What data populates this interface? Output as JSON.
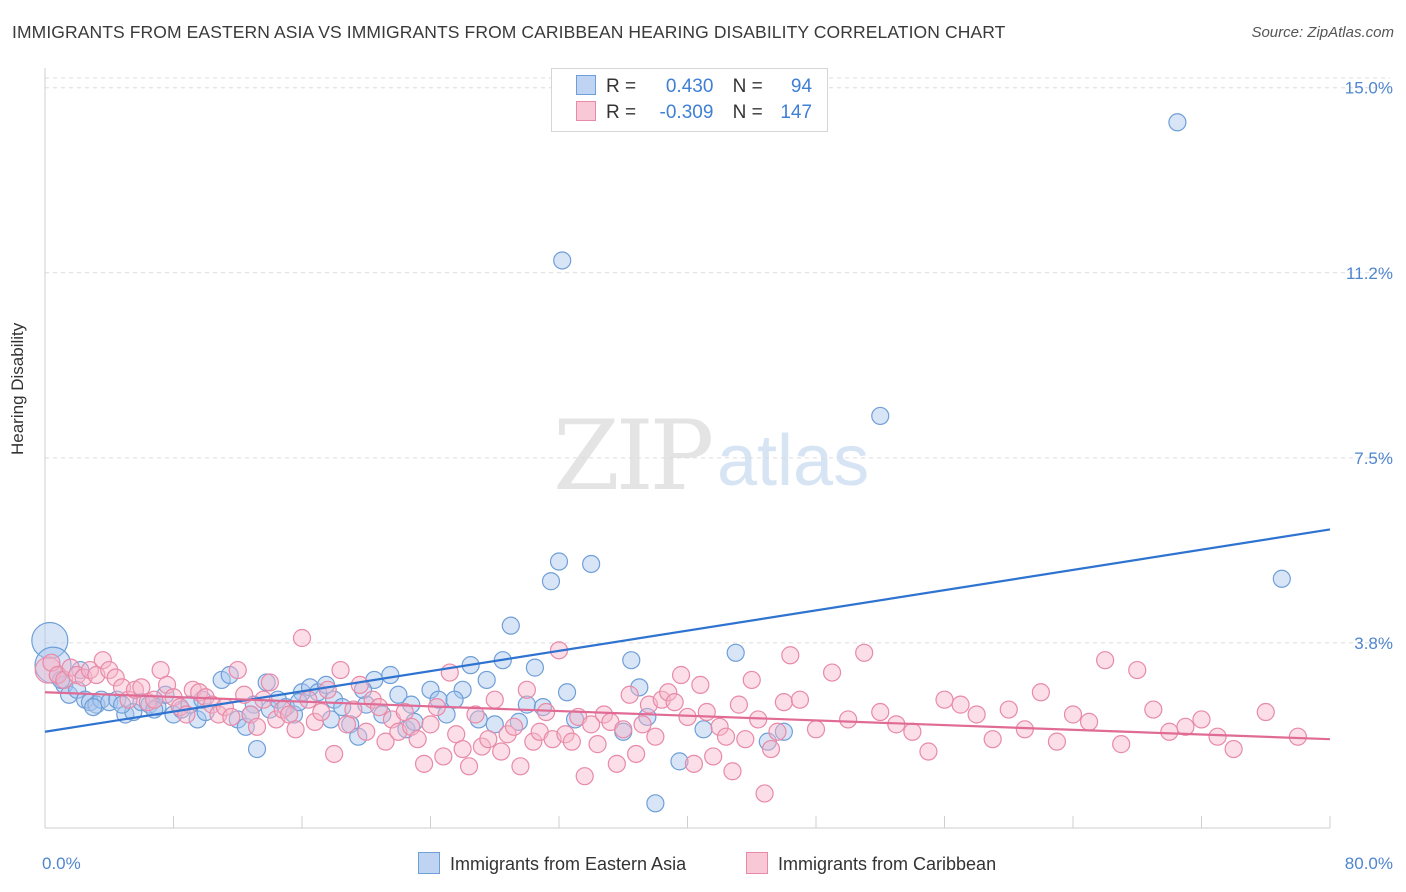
{
  "chart_data": {
    "type": "scatter",
    "title": "IMMIGRANTS FROM EASTERN ASIA VS IMMIGRANTS FROM CARIBBEAN HEARING DISABILITY CORRELATION CHART",
    "source": "Source: ZipAtlas.com",
    "ylabel": "Hearing Disability",
    "xlabel": "",
    "x_tick_labels": [
      "0.0%",
      "80.0%"
    ],
    "y_tick_labels": [
      "15.0%",
      "11.2%",
      "7.5%",
      "3.8%"
    ],
    "y_ticks": [
      15.0,
      11.25,
      7.5,
      3.75
    ],
    "xlim": [
      0,
      80
    ],
    "ylim": [
      0,
      15.4
    ],
    "grid": true,
    "watermark": {
      "zip": "ZIP",
      "atlas": "atlas"
    },
    "legend": {
      "placement": "top-center",
      "rows": [
        {
          "r_label": "R =",
          "r_value": "0.430",
          "n_label": "N =",
          "n_value": "94"
        },
        {
          "r_label": "R =",
          "r_value": "-0.309",
          "n_label": "N =",
          "n_value": "147"
        }
      ]
    },
    "series": [
      {
        "name": "Immigrants from Eastern Asia",
        "color": "#a9c6ee",
        "stroke": "#6f9fd8",
        "line_color": "#2f73d0",
        "trend": [
          [
            0,
            1.95
          ],
          [
            80,
            6.05
          ]
        ],
        "points": [
          [
            0.3,
            3.8,
            3
          ],
          [
            0.5,
            3.3,
            3
          ],
          [
            0.8,
            3.1,
            1
          ],
          [
            1.2,
            2.9,
            1
          ],
          [
            1.5,
            2.7,
            1
          ],
          [
            2,
            2.8,
            1
          ],
          [
            2.5,
            2.6,
            1
          ],
          [
            2.8,
            2.55,
            1
          ],
          [
            3.2,
            2.5,
            1
          ],
          [
            3.5,
            2.6,
            1
          ],
          [
            4,
            2.55,
            1
          ],
          [
            4.5,
            2.6,
            1
          ],
          [
            5,
            2.3,
            1
          ],
          [
            5.5,
            2.35,
            1
          ],
          [
            6,
            2.55,
            1
          ],
          [
            6.5,
            2.5,
            1
          ],
          [
            7,
            2.45,
            1
          ],
          [
            7.5,
            2.7,
            1
          ],
          [
            8,
            2.3,
            1
          ],
          [
            8.5,
            2.4,
            1
          ],
          [
            9,
            2.5,
            1
          ],
          [
            9.5,
            2.2,
            1
          ],
          [
            10,
            2.35,
            1
          ],
          [
            11,
            3.0,
            1
          ],
          [
            11.5,
            3.1,
            1
          ],
          [
            12,
            2.2,
            1
          ],
          [
            12.5,
            2.05,
            1
          ],
          [
            13,
            2.5,
            1
          ],
          [
            13.2,
            1.6,
            1
          ],
          [
            13.8,
            2.95,
            1
          ],
          [
            14,
            2.4,
            1
          ],
          [
            14.5,
            2.6,
            1
          ],
          [
            15,
            2.45,
            1
          ],
          [
            15.5,
            2.3,
            1
          ],
          [
            16,
            2.75,
            1
          ],
          [
            16.5,
            2.85,
            1
          ],
          [
            17,
            2.75,
            1
          ],
          [
            17.5,
            2.9,
            1
          ],
          [
            18,
            2.6,
            1
          ],
          [
            18.5,
            2.45,
            1
          ],
          [
            19,
            2.1,
            1
          ],
          [
            19.5,
            1.85,
            1
          ],
          [
            20,
            2.5,
            1
          ],
          [
            20.5,
            3.0,
            1
          ],
          [
            21,
            2.3,
            1
          ],
          [
            21.5,
            3.1,
            1
          ],
          [
            22,
            2.7,
            1
          ],
          [
            22.5,
            2.0,
            1
          ],
          [
            23,
            2.15,
            1
          ],
          [
            24,
            2.8,
            1
          ],
          [
            24.5,
            2.6,
            1
          ],
          [
            25,
            2.3,
            1
          ],
          [
            26,
            2.8,
            1
          ],
          [
            26.5,
            3.3,
            1
          ],
          [
            27,
            2.2,
            1
          ],
          [
            27.5,
            3.0,
            1
          ],
          [
            28,
            2.1,
            1
          ],
          [
            28.5,
            3.4,
            1
          ],
          [
            29,
            4.1,
            1
          ],
          [
            29.5,
            2.15,
            1
          ],
          [
            30,
            2.5,
            1
          ],
          [
            30.5,
            3.25,
            1
          ],
          [
            31,
            2.45,
            1
          ],
          [
            31.5,
            5.0,
            1
          ],
          [
            32,
            5.4,
            1
          ],
          [
            32.2,
            11.5,
            1
          ],
          [
            32.5,
            2.75,
            1
          ],
          [
            33,
            2.2,
            1
          ],
          [
            34,
            5.35,
            1
          ],
          [
            36,
            1.95,
            1
          ],
          [
            36.5,
            3.4,
            1
          ],
          [
            37,
            2.85,
            1
          ],
          [
            37.5,
            2.25,
            1
          ],
          [
            38,
            0.5,
            1
          ],
          [
            39.5,
            1.35,
            1
          ],
          [
            41,
            2.0,
            1
          ],
          [
            43,
            3.55,
            1
          ],
          [
            45,
            1.75,
            1
          ],
          [
            46,
            1.95,
            1
          ],
          [
            52,
            8.35,
            1
          ],
          [
            70.5,
            14.3,
            1
          ],
          [
            77,
            5.05,
            1
          ],
          [
            1,
            3.0,
            1
          ],
          [
            3,
            2.45,
            1
          ],
          [
            6.8,
            2.4,
            1
          ],
          [
            9.8,
            2.6,
            1
          ],
          [
            12.8,
            2.3,
            1
          ],
          [
            17.8,
            2.2,
            1
          ],
          [
            22.8,
            2.5,
            1
          ],
          [
            25.5,
            2.6,
            1
          ],
          [
            19.8,
            2.8,
            1
          ],
          [
            15.8,
            2.55,
            1
          ],
          [
            4.8,
            2.5,
            1
          ],
          [
            2.2,
            3.2,
            1
          ]
        ]
      },
      {
        "name": "Immigrants from Caribbean",
        "color": "#f6b6ca",
        "stroke": "#e88aa8",
        "line_color": "#e06b95",
        "trend": [
          [
            0,
            2.75
          ],
          [
            80,
            1.8
          ]
        ],
        "points": [
          [
            0.2,
            3.2,
            2
          ],
          [
            0.4,
            3.35,
            1
          ],
          [
            0.8,
            3.1,
            1
          ],
          [
            1.2,
            3.0,
            1
          ],
          [
            1.6,
            3.25,
            1
          ],
          [
            2,
            3.1,
            1
          ],
          [
            2.4,
            3.05,
            1
          ],
          [
            2.8,
            3.2,
            1
          ],
          [
            3.2,
            3.1,
            1
          ],
          [
            3.6,
            3.4,
            1
          ],
          [
            4,
            3.2,
            1
          ],
          [
            4.4,
            3.05,
            1
          ],
          [
            4.8,
            2.85,
            1
          ],
          [
            5.2,
            2.6,
            1
          ],
          [
            5.6,
            2.8,
            1
          ],
          [
            6,
            2.85,
            1
          ],
          [
            6.4,
            2.55,
            1
          ],
          [
            6.8,
            2.6,
            1
          ],
          [
            7.2,
            3.2,
            1
          ],
          [
            7.6,
            2.9,
            1
          ],
          [
            8,
            2.65,
            1
          ],
          [
            8.4,
            2.45,
            1
          ],
          [
            8.8,
            2.3,
            1
          ],
          [
            9.2,
            2.8,
            1
          ],
          [
            9.6,
            2.75,
            1
          ],
          [
            10,
            2.65,
            1
          ],
          [
            10.4,
            2.5,
            1
          ],
          [
            10.8,
            2.3,
            1
          ],
          [
            11.2,
            2.45,
            1
          ],
          [
            11.6,
            2.25,
            1
          ],
          [
            12,
            3.2,
            1
          ],
          [
            12.4,
            2.7,
            1
          ],
          [
            12.8,
            2.3,
            1
          ],
          [
            13.2,
            2.05,
            1
          ],
          [
            13.6,
            2.6,
            1
          ],
          [
            14,
            2.95,
            1
          ],
          [
            14.4,
            2.2,
            1
          ],
          [
            14.8,
            2.4,
            1
          ],
          [
            15.2,
            2.3,
            1
          ],
          [
            15.6,
            2.0,
            1
          ],
          [
            16,
            3.85,
            1
          ],
          [
            16.4,
            2.6,
            1
          ],
          [
            16.8,
            2.15,
            1
          ],
          [
            17.2,
            2.35,
            1
          ],
          [
            17.6,
            2.8,
            1
          ],
          [
            18,
            1.5,
            1
          ],
          [
            18.4,
            3.2,
            1
          ],
          [
            18.8,
            2.1,
            1
          ],
          [
            19.2,
            2.4,
            1
          ],
          [
            19.6,
            2.9,
            1
          ],
          [
            20,
            1.95,
            1
          ],
          [
            20.4,
            2.6,
            1
          ],
          [
            20.8,
            2.45,
            1
          ],
          [
            21.2,
            1.75,
            1
          ],
          [
            21.6,
            2.2,
            1
          ],
          [
            22,
            1.95,
            1
          ],
          [
            22.4,
            2.35,
            1
          ],
          [
            22.8,
            2.05,
            1
          ],
          [
            23.2,
            1.8,
            1
          ],
          [
            23.6,
            1.3,
            1
          ],
          [
            24,
            2.1,
            1
          ],
          [
            24.4,
            2.45,
            1
          ],
          [
            24.8,
            1.45,
            1
          ],
          [
            25.2,
            3.15,
            1
          ],
          [
            25.6,
            1.9,
            1
          ],
          [
            26,
            1.6,
            1
          ],
          [
            26.4,
            1.25,
            1
          ],
          [
            26.8,
            2.3,
            1
          ],
          [
            27.2,
            1.65,
            1
          ],
          [
            27.6,
            1.8,
            1
          ],
          [
            28,
            2.6,
            1
          ],
          [
            28.4,
            1.55,
            1
          ],
          [
            28.8,
            1.9,
            1
          ],
          [
            29.2,
            2.05,
            1
          ],
          [
            29.6,
            1.25,
            1
          ],
          [
            30,
            2.8,
            1
          ],
          [
            30.4,
            1.75,
            1
          ],
          [
            30.8,
            1.95,
            1
          ],
          [
            31.2,
            2.35,
            1
          ],
          [
            31.6,
            1.8,
            1
          ],
          [
            32,
            3.6,
            1
          ],
          [
            32.4,
            1.9,
            1
          ],
          [
            32.8,
            1.75,
            1
          ],
          [
            33.2,
            2.25,
            1
          ],
          [
            33.6,
            1.05,
            1
          ],
          [
            34,
            2.1,
            1
          ],
          [
            34.4,
            1.7,
            1
          ],
          [
            34.8,
            2.3,
            1
          ],
          [
            35.2,
            2.15,
            1
          ],
          [
            35.6,
            1.3,
            1
          ],
          [
            36,
            2.0,
            1
          ],
          [
            36.4,
            2.7,
            1
          ],
          [
            36.8,
            1.5,
            1
          ],
          [
            37.2,
            2.1,
            1
          ],
          [
            37.6,
            2.5,
            1
          ],
          [
            38,
            1.85,
            1
          ],
          [
            38.4,
            2.6,
            1
          ],
          [
            38.8,
            2.75,
            1
          ],
          [
            39.2,
            2.55,
            1
          ],
          [
            39.6,
            3.1,
            1
          ],
          [
            40,
            2.25,
            1
          ],
          [
            40.4,
            1.3,
            1
          ],
          [
            40.8,
            2.9,
            1
          ],
          [
            41.2,
            2.35,
            1
          ],
          [
            41.6,
            1.45,
            1
          ],
          [
            42,
            2.05,
            1
          ],
          [
            42.4,
            1.85,
            1
          ],
          [
            42.8,
            1.15,
            1
          ],
          [
            43.2,
            2.5,
            1
          ],
          [
            43.6,
            1.8,
            1
          ],
          [
            44,
            3.0,
            1
          ],
          [
            44.4,
            2.2,
            1
          ],
          [
            44.8,
            0.7,
            1
          ],
          [
            45.2,
            1.6,
            1
          ],
          [
            45.6,
            1.95,
            1
          ],
          [
            46,
            2.55,
            1
          ],
          [
            46.4,
            3.5,
            1
          ],
          [
            47,
            2.6,
            1
          ],
          [
            48,
            2.0,
            1
          ],
          [
            49,
            3.15,
            1
          ],
          [
            50,
            2.2,
            1
          ],
          [
            51,
            3.55,
            1
          ],
          [
            52,
            2.35,
            1
          ],
          [
            53,
            2.1,
            1
          ],
          [
            55,
            1.55,
            1
          ],
          [
            57,
            2.5,
            1
          ],
          [
            58,
            2.3,
            1
          ],
          [
            59,
            1.8,
            1
          ],
          [
            60,
            2.4,
            1
          ],
          [
            62,
            2.75,
            1
          ],
          [
            64,
            2.3,
            1
          ],
          [
            66,
            3.4,
            1
          ],
          [
            68,
            3.2,
            1
          ],
          [
            70,
            1.95,
            1
          ],
          [
            72,
            2.2,
            1
          ],
          [
            74,
            1.6,
            1
          ],
          [
            76,
            2.35,
            1
          ],
          [
            78,
            1.85,
            1
          ],
          [
            61,
            2.0,
            1
          ],
          [
            56,
            2.6,
            1
          ],
          [
            54,
            1.95,
            1
          ],
          [
            63,
            1.75,
            1
          ],
          [
            65,
            2.15,
            1
          ],
          [
            67,
            1.7,
            1
          ],
          [
            69,
            2.4,
            1
          ],
          [
            71,
            2.05,
            1
          ],
          [
            73,
            1.85,
            1
          ]
        ]
      }
    ]
  }
}
